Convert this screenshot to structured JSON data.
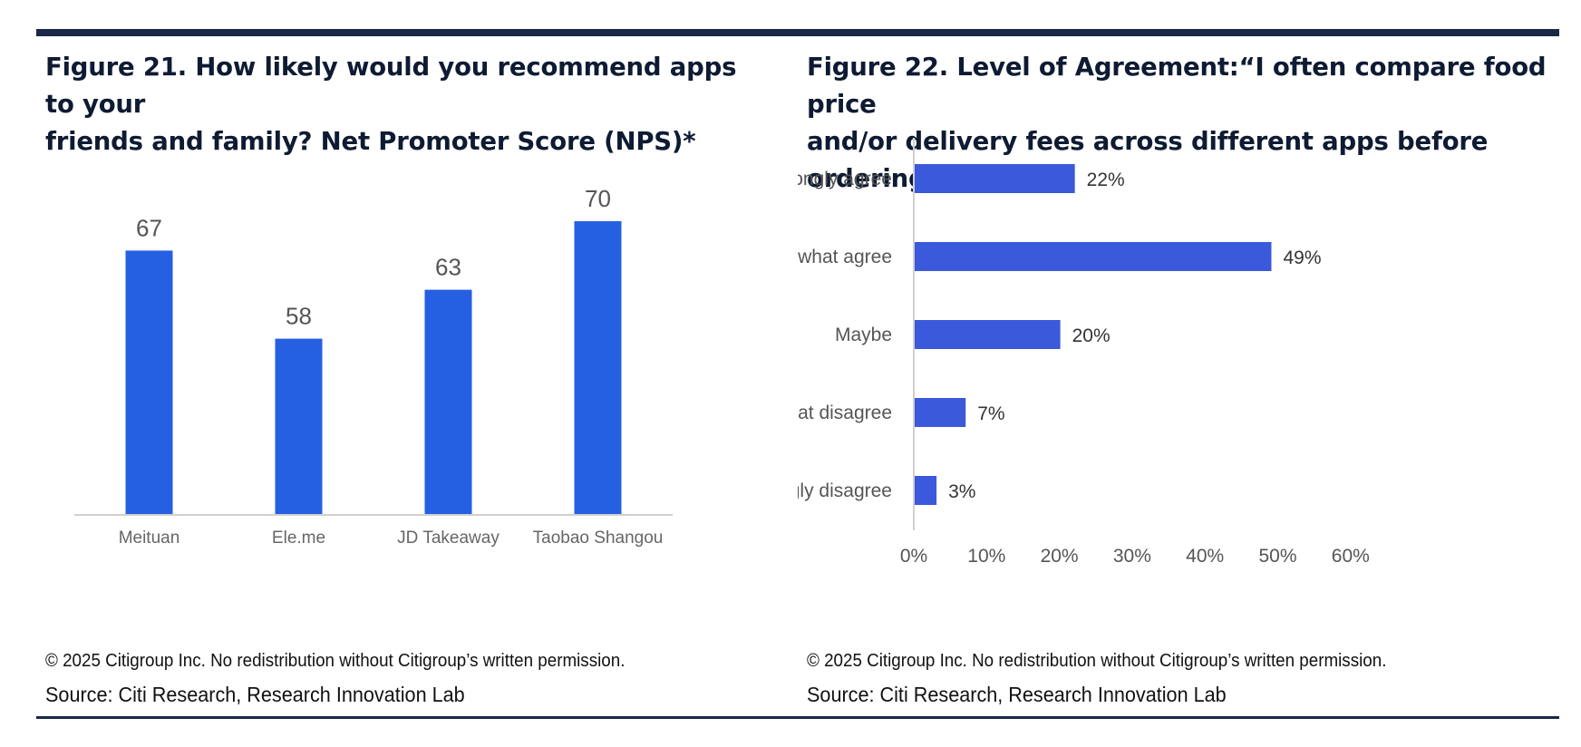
{
  "figures": [
    {
      "title_line1": "Figure 21. How likely would you recommend apps to your",
      "title_line2": "friends and family? Net Promoter Score (NPS)*",
      "copyright": "© 2025 Citigroup Inc. No redistribution without Citigroup’s written permission.",
      "source": "Source: Citi Research, Research Innovation Lab"
    },
    {
      "title_line1": "Figure 22. Level of Agreement:“I often compare food price",
      "title_line2": "and/or delivery fees across different apps before ordering”",
      "copyright": "© 2025 Citigroup Inc. No redistribution without Citigroup’s written permission.",
      "source": "Source: Citi Research, Research Innovation Lab"
    }
  ],
  "colors": {
    "bar_fig21": "#2560e3",
    "bar_fig22": "#3a59db",
    "rule": "#1a2746",
    "axis": "#d0d0d0",
    "label_text": "#555555",
    "value_text": "#333333"
  },
  "chart_data": [
    {
      "type": "bar",
      "orientation": "vertical",
      "title": "How likely would you recommend apps to your friends and family? Net Promoter Score (NPS)*",
      "categories": [
        "Meituan",
        "Ele.me",
        "JD Takeaway",
        "Taobao Shangou"
      ],
      "values": [
        67,
        58,
        63,
        70
      ],
      "value_labels": [
        "67",
        "58",
        "63",
        "70"
      ],
      "ylim": [
        40,
        75
      ],
      "grid": false,
      "xlabel": "",
      "ylabel": ""
    },
    {
      "type": "bar",
      "orientation": "horizontal",
      "title": "Level of Agreement: “I often compare food price and/or delivery fees across different apps before ordering”",
      "categories": [
        "Strongly agree",
        "Somewhat agree",
        "Maybe",
        "Somewhat disagree",
        "Strongly disagree"
      ],
      "values": [
        22,
        49,
        20,
        7,
        3
      ],
      "value_labels": [
        "22%",
        "49%",
        "20%",
        "7%",
        "3%"
      ],
      "xlim": [
        0,
        60
      ],
      "x_ticks": [
        "0%",
        "10%",
        "20%",
        "30%",
        "40%",
        "50%",
        "60%"
      ],
      "grid": false,
      "xlabel": "",
      "ylabel": ""
    }
  ]
}
